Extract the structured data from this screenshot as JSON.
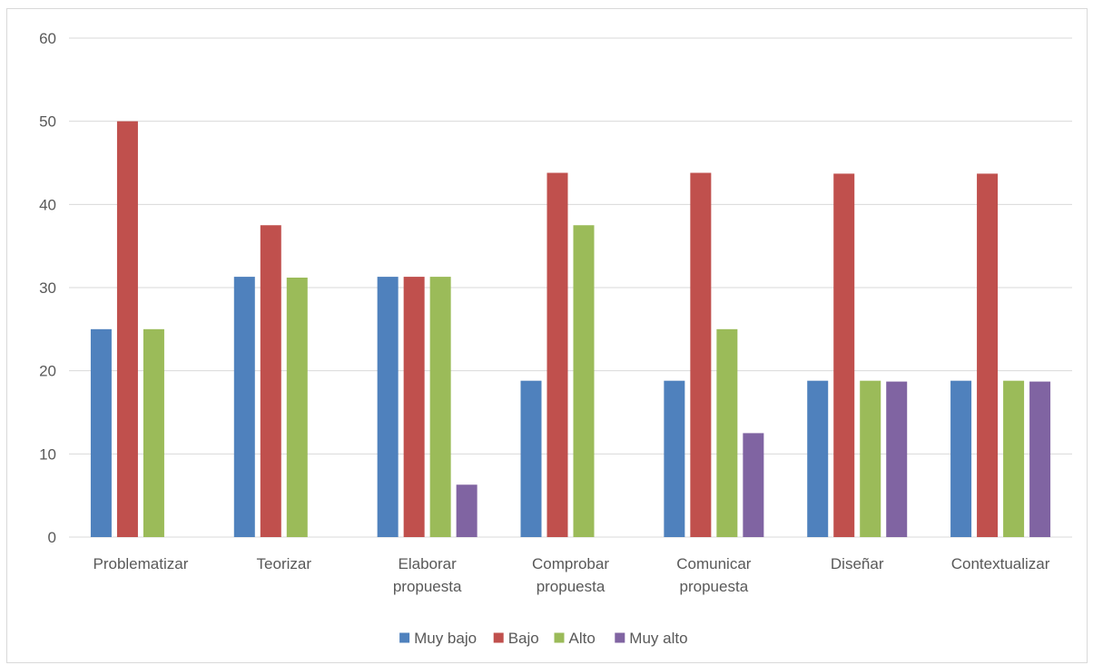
{
  "chart_data": {
    "type": "bar",
    "categories": [
      [
        "Problematizar"
      ],
      [
        "Teorizar"
      ],
      [
        "Elaborar",
        "propuesta"
      ],
      [
        "Comprobar",
        "propuesta"
      ],
      [
        "Comunicar",
        "propuesta"
      ],
      [
        "Diseñar"
      ],
      [
        "Contextualizar"
      ]
    ],
    "series": [
      {
        "name": "Muy bajo",
        "color": "#4f81bd",
        "values": [
          25,
          31.3,
          31.3,
          18.8,
          18.8,
          18.8,
          18.8
        ]
      },
      {
        "name": "Bajo",
        "color": "#c0504d",
        "values": [
          50,
          37.5,
          31.3,
          43.8,
          43.8,
          43.7,
          43.7
        ]
      },
      {
        "name": "Alto",
        "color": "#9bbb59",
        "values": [
          25,
          31.2,
          31.3,
          37.5,
          25,
          18.8,
          18.8
        ]
      },
      {
        "name": "Muy alto",
        "color": "#8064a2",
        "values": [
          0,
          0,
          6.3,
          0,
          12.5,
          18.7,
          18.7
        ]
      }
    ],
    "ylim": [
      0,
      60
    ],
    "yticks": [
      0,
      10,
      20,
      30,
      40,
      50,
      60
    ],
    "grid": true,
    "legend_position": "bottom",
    "title": "",
    "xlabel": "",
    "ylabel": "",
    "gridline_color": "#d9d9d9"
  }
}
